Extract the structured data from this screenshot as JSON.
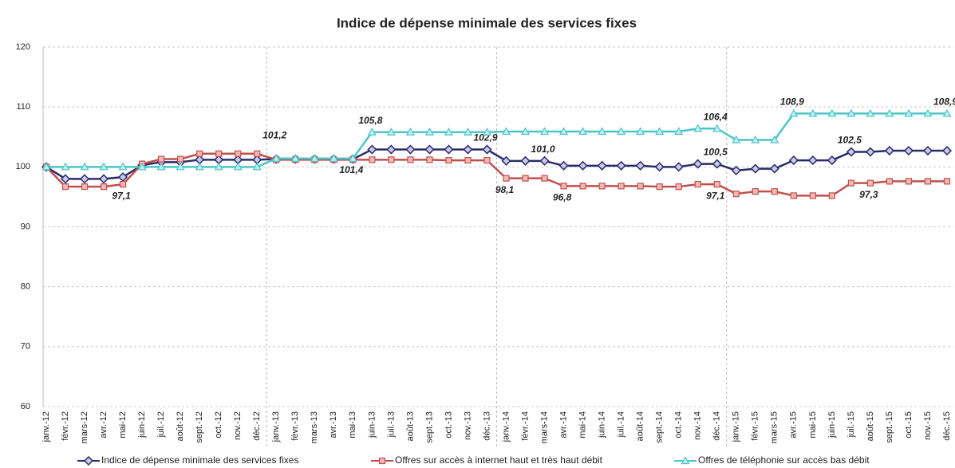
{
  "chart_data": {
    "type": "line",
    "title": "Indice de dépense minimale des services fixes",
    "categories": [
      "janv.-12",
      "févr.-12",
      "mars-12",
      "avr.-12",
      "mai-12",
      "juin-12",
      "juil.-12",
      "août-12",
      "sept.-12",
      "oct.-12",
      "nov.-12",
      "déc.-12",
      "janv.-13",
      "févr.-13",
      "mars-13",
      "avr.-13",
      "mai-13",
      "juin-13",
      "juil.-13",
      "août-13",
      "sept.-13",
      "oct.-13",
      "nov.-13",
      "déc.-13",
      "janv.-14",
      "févr.-14",
      "mars-14",
      "avr.-14",
      "mai-14",
      "juin-14",
      "juil.-14",
      "août-14",
      "sept.-14",
      "oct.-14",
      "nov.-14",
      "déc.-14",
      "janv.-15",
      "févr.-15",
      "mars-15",
      "avr.-15",
      "mai-15",
      "juin-15",
      "juil.-15",
      "août-15",
      "sept.-15",
      "oct.-15",
      "nov.-15",
      "déc.-15"
    ],
    "series": [
      {
        "name": "Indice de dépense minimale des services fixes",
        "color": "#2b2b6b",
        "label_color": "#2b2b6b",
        "values": [
          100,
          98.0,
          98.0,
          98.0,
          98.3,
          100.3,
          100.8,
          100.8,
          101.2,
          101.2,
          101.2,
          101.2,
          101.3,
          101.3,
          101.3,
          101.3,
          101.3,
          102.9,
          102.9,
          102.9,
          102.9,
          102.9,
          102.9,
          102.9,
          101.0,
          101.0,
          101.0,
          100.2,
          100.2,
          100.2,
          100.2,
          100.2,
          100.0,
          100.0,
          100.5,
          100.5,
          99.4,
          99.7,
          99.7,
          101.1,
          101.1,
          101.1,
          102.5,
          102.5,
          102.7,
          102.7,
          102.7,
          102.7
        ],
        "value_labels": [
          null,
          null,
          null,
          null,
          null,
          null,
          null,
          null,
          null,
          null,
          null,
          null,
          null,
          null,
          null,
          null,
          null,
          null,
          null,
          null,
          null,
          null,
          null,
          "102,9",
          null,
          null,
          "101,0",
          null,
          null,
          null,
          null,
          null,
          null,
          null,
          null,
          "100,5",
          null,
          null,
          null,
          null,
          null,
          null,
          "102,5",
          null,
          null,
          null,
          null,
          null
        ]
      },
      {
        "name": "Offres sur accès à internet haut et très haut débit",
        "color": "#c0504d",
        "label_color": "#7f2a2a",
        "values": [
          100,
          96.7,
          96.7,
          96.7,
          97.1,
          100.5,
          101.3,
          101.3,
          102.2,
          102.2,
          102.2,
          102.2,
          101.2,
          101.2,
          101.2,
          101.2,
          101.2,
          101.2,
          101.2,
          101.2,
          101.2,
          101.1,
          101.1,
          101.1,
          98.1,
          98.1,
          98.1,
          96.8,
          96.8,
          96.8,
          96.8,
          96.8,
          96.7,
          96.7,
          97.1,
          97.1,
          95.5,
          95.9,
          95.9,
          95.2,
          95.2,
          95.2,
          97.3,
          97.3,
          97.6,
          97.6,
          97.6,
          97.6
        ],
        "value_labels": [
          null,
          null,
          null,
          null,
          "97,1",
          null,
          null,
          null,
          null,
          null,
          null,
          null,
          "101,2",
          null,
          null,
          null,
          null,
          null,
          null,
          null,
          null,
          null,
          null,
          null,
          "98,1",
          null,
          null,
          "96,8",
          null,
          null,
          null,
          null,
          null,
          null,
          null,
          "97,1",
          null,
          null,
          null,
          null,
          null,
          null,
          null,
          "97,3",
          null,
          null,
          null,
          null
        ]
      },
      {
        "name": "Offres de téléphonie sur accès bas débit",
        "color": "#4bc6c8",
        "label_color": "#31859c",
        "values": [
          100,
          100,
          100,
          100,
          100,
          100,
          100,
          100,
          100,
          100,
          100,
          100,
          101.4,
          101.4,
          101.4,
          101.4,
          101.4,
          105.8,
          105.8,
          105.8,
          105.8,
          105.8,
          105.8,
          105.8,
          105.9,
          105.9,
          105.9,
          105.9,
          105.9,
          105.9,
          105.9,
          105.9,
          105.9,
          105.9,
          106.4,
          106.4,
          104.5,
          104.5,
          104.5,
          108.9,
          108.9,
          108.9,
          108.9,
          108.9,
          108.9,
          108.9,
          108.9,
          108.9
        ],
        "value_labels": [
          null,
          null,
          null,
          null,
          null,
          null,
          null,
          null,
          null,
          null,
          null,
          null,
          null,
          null,
          null,
          null,
          "101,4",
          "105,8",
          null,
          null,
          null,
          null,
          null,
          null,
          null,
          null,
          null,
          null,
          null,
          null,
          null,
          null,
          null,
          null,
          null,
          "106,4",
          null,
          null,
          null,
          "108,9",
          null,
          null,
          null,
          null,
          null,
          null,
          null,
          "108,9"
        ]
      }
    ],
    "ylim": [
      60,
      120
    ],
    "yticks": [
      60,
      70,
      80,
      90,
      100,
      110,
      120
    ],
    "grid": true,
    "legend": "bottom"
  }
}
